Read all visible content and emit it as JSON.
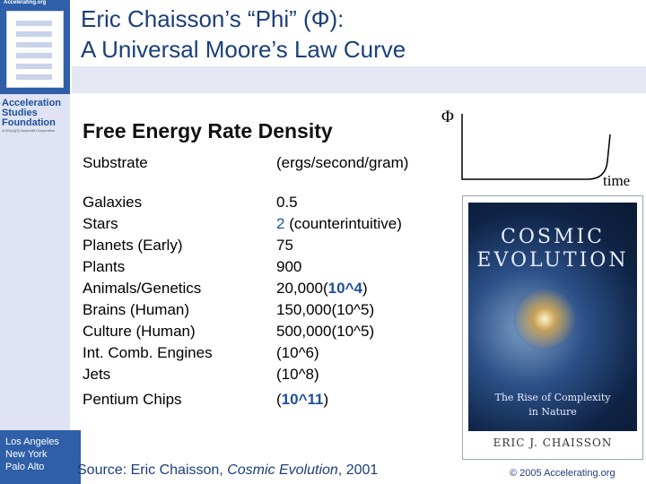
{
  "sidebar": {
    "url": "Accelerating.org",
    "org_name": [
      "Acceleration",
      "Studies",
      "Foundation"
    ],
    "org_tag": "A 501(c)(3) Nonprofit Corporation",
    "cities": [
      "Los Angeles",
      "New York",
      "Palo Alto"
    ]
  },
  "title": {
    "line1": "Eric Chaisson’s “Phi” (Φ):",
    "line2": "A Universal Moore’s Law Curve"
  },
  "subhead": "Free Energy Rate Density",
  "table": {
    "col1_header": "Substrate",
    "col2_header": "(ergs/second/gram)",
    "rows": [
      {
        "substrate": "Galaxies",
        "substrate_note": "",
        "value_main": "0.5",
        "value_note": ""
      },
      {
        "substrate": "Stars",
        "substrate_note": "",
        "value_main": "2",
        "value_note": " (counterintuitive)"
      },
      {
        "substrate": "Planets",
        "substrate_note": " (Early)",
        "value_main": "75",
        "value_note": ""
      },
      {
        "substrate": "Plants",
        "substrate_note": "",
        "value_main": "900",
        "value_note": ""
      },
      {
        "substrate": "Animals/Genetics",
        "substrate_note": "",
        "value_main": "20,000(",
        "value_em": "10^4",
        "value_note": ")"
      },
      {
        "substrate": "Brains (Human)",
        "substrate_note": "",
        "value_main": "150,000(10^5)",
        "value_note": ""
      },
      {
        "substrate": "Culture (Human)",
        "substrate_note": "",
        "value_main": "500,000(10^5)",
        "value_note": ""
      },
      {
        "substrate": "Int. Comb. Engines",
        "substrate_note": "",
        "value_main": "(10^6)",
        "value_note": ""
      },
      {
        "substrate": "Jets",
        "substrate_note": "",
        "value_main": "(10^8)",
        "value_note": ""
      },
      {
        "substrate": "Pentium Chips",
        "substrate_note": "",
        "value_main": "(",
        "value_em": "10^11",
        "value_note": ")"
      }
    ]
  },
  "graph": {
    "y_label": "Φ",
    "x_label": "time"
  },
  "book": {
    "title": [
      "COSMIC",
      "EVOLUTION"
    ],
    "subtitle": [
      "The Rise of Complexity",
      "in Nature"
    ],
    "author": "ERIC J. CHAISSON"
  },
  "footer": {
    "source_prefix": "Source: Eric Chaisson, ",
    "source_title": "Cosmic Evolution",
    "source_suffix": ", 2001",
    "copyright": "© 2005 Accelerating.org"
  },
  "colors": {
    "sidebar_blue": "#2f5fa8",
    "title_blue": "#1a3f7a",
    "highlight_blue": "#1f4f9c"
  }
}
